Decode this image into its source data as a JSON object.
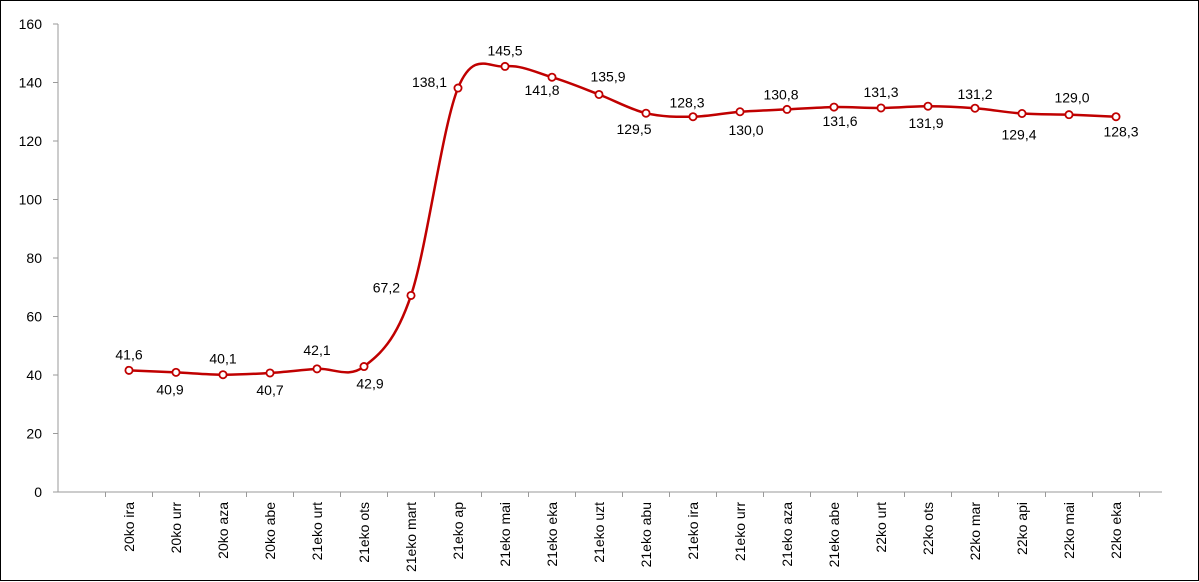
{
  "chart_data": {
    "type": "line",
    "title": "",
    "xlabel": "",
    "ylabel": "",
    "ylim": [
      0,
      160
    ],
    "yticks": [
      0,
      20,
      40,
      60,
      80,
      100,
      120,
      140,
      160
    ],
    "grid": false,
    "legend": "none",
    "categories": [
      "20ko ira",
      "20ko urr",
      "20ko aza",
      "20ko abe",
      "21eko urt",
      "21eko ots",
      "21eko mart",
      "21eko ap",
      "21eko mai",
      "21eko eka",
      "21eko uzt",
      "21eko abu",
      "21eko ira",
      "21eko urr",
      "21eko aza",
      "21eko abe",
      "22ko urt",
      "22ko ots",
      "22ko mar",
      "22ko api",
      "22ko mai",
      "22ko eka"
    ],
    "series": [
      {
        "color": "#c00000",
        "values": [
          41.6,
          40.9,
          40.1,
          40.7,
          42.1,
          42.9,
          67.2,
          138.1,
          145.5,
          141.8,
          135.9,
          129.5,
          128.3,
          130.0,
          130.8,
          131.6,
          131.3,
          131.9,
          131.2,
          129.4,
          129.0,
          128.3
        ],
        "data_labels": [
          "41,6",
          "40,9",
          "40,1",
          "40,7",
          "42,1",
          "42,9",
          "67,2",
          "138,1",
          "145,5",
          "141,8",
          "135,9",
          "129,5",
          "128,3",
          "130,0",
          "130,8",
          "131,6",
          "131,3",
          "131,9",
          "131,2",
          "129,4",
          "129,0",
          "128,3"
        ]
      }
    ]
  }
}
